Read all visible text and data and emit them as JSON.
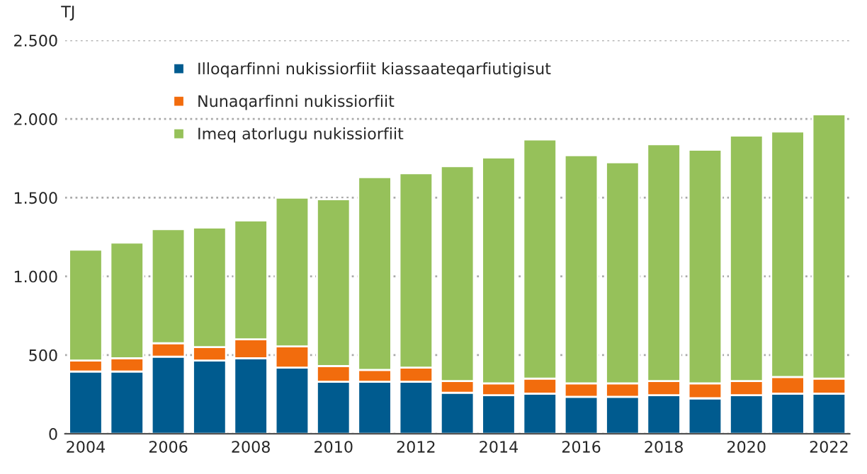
{
  "chart_data": {
    "type": "bar",
    "stacked": true,
    "ylabel": "TJ",
    "categories": [
      "2004",
      null,
      "2006",
      null,
      "2008",
      null,
      "2010",
      null,
      "2012",
      null,
      "2014",
      null,
      "2016",
      null,
      "2018",
      null,
      "2020",
      null,
      "2022"
    ],
    "series": [
      {
        "name": "Illoqarfinni nukissiorfiit kiassaateqarfiutigisut",
        "color": "#005b8f",
        "values": [
          395,
          395,
          490,
          465,
          480,
          420,
          330,
          330,
          330,
          260,
          245,
          255,
          235,
          235,
          245,
          225,
          245,
          255,
          255
        ]
      },
      {
        "name": "Nunaqarfinni nukissiorfiit",
        "color": "#f26c0d",
        "values": [
          70,
          85,
          85,
          85,
          120,
          135,
          100,
          75,
          90,
          75,
          75,
          95,
          85,
          85,
          90,
          95,
          90,
          105,
          95
        ]
      },
      {
        "name": "Imeq atorlugu nukissiorfiit",
        "color": "#96c15a",
        "values": [
          705,
          735,
          725,
          760,
          755,
          945,
          1060,
          1225,
          1235,
          1365,
          1435,
          1520,
          1450,
          1405,
          1505,
          1485,
          1560,
          1560,
          1680
        ]
      }
    ],
    "ylim": [
      0,
      2500
    ],
    "yticks": [
      {
        "value": 0,
        "label": "0"
      },
      {
        "value": 500,
        "label": "500"
      },
      {
        "value": 1000,
        "label": "1.000"
      },
      {
        "value": 1500,
        "label": "1.500"
      },
      {
        "value": 2000,
        "label": "2.000"
      },
      {
        "value": 2500,
        "label": "2.500"
      }
    ],
    "grid": "y",
    "legend": "top left"
  }
}
